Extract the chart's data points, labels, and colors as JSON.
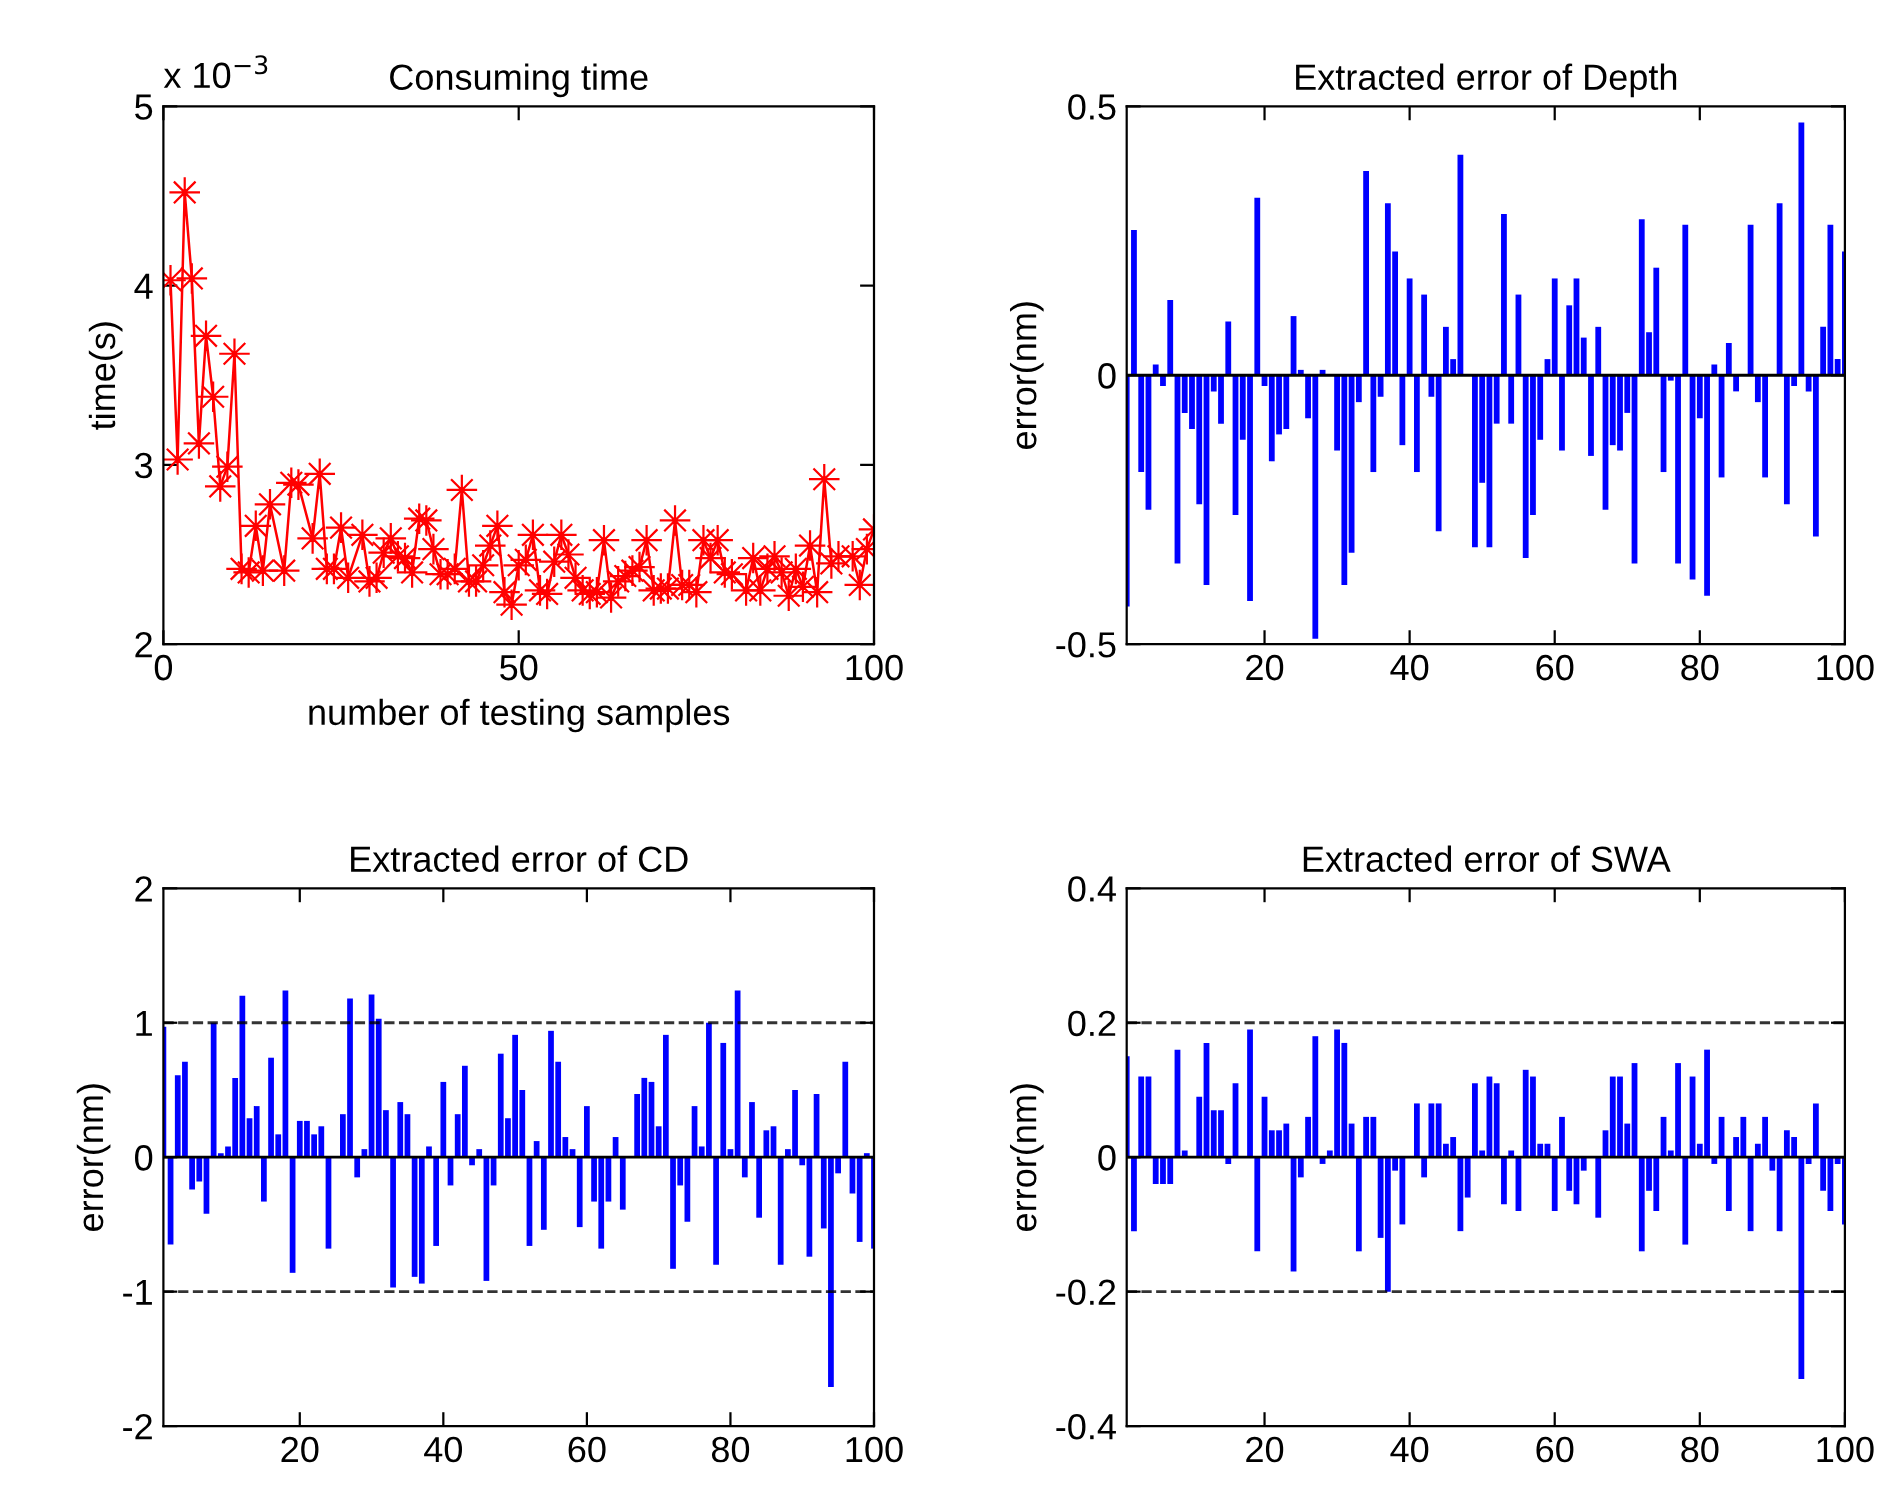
{
  "chart_data": [
    {
      "type": "line",
      "title": "Consuming time",
      "xlabel": "number of testing samples",
      "ylabel": "time(s)",
      "annotations": [
        "x 10$^{−3}$"
      ],
      "marker": "star",
      "line_style": "solid",
      "grid": false,
      "legend": false,
      "xlim": [
        0,
        100
      ],
      "xticks": [
        0,
        50,
        100
      ],
      "ylim": [
        2,
        5
      ],
      "yticks": [
        2,
        3,
        4,
        5
      ],
      "series": [
        {
          "color": "#ff0000",
          "x": [
            1,
            2,
            3,
            4,
            5,
            6,
            7,
            8,
            9,
            10,
            11,
            12,
            13,
            14,
            15,
            17,
            18,
            19,
            21,
            22,
            23,
            24,
            25,
            26,
            28,
            29,
            30,
            31,
            32,
            33,
            34,
            35,
            36,
            37,
            38,
            39,
            40,
            41,
            42,
            43,
            44,
            45,
            46,
            47,
            48,
            49,
            50,
            51,
            52,
            53,
            54,
            55,
            56,
            57,
            58,
            59,
            60,
            61,
            62,
            63,
            64,
            65,
            66,
            67,
            68,
            69,
            70,
            71,
            72,
            73,
            74,
            75,
            76,
            77,
            78,
            79,
            80,
            82,
            83,
            84,
            85,
            86,
            87,
            88,
            89,
            90,
            91,
            92,
            93,
            94,
            95,
            97,
            98,
            99,
            100
          ],
          "values": [
            4.03,
            3.03,
            4.52,
            4.04,
            3.12,
            3.72,
            3.38,
            2.88,
            2.99,
            3.62,
            2.42,
            2.4,
            2.66,
            2.41,
            2.78,
            2.41,
            2.9,
            2.89,
            2.59,
            2.95,
            2.42,
            2.42,
            2.65,
            2.37,
            2.61,
            2.35,
            2.37,
            2.51,
            2.59,
            2.49,
            2.48,
            2.4,
            2.7,
            2.69,
            2.53,
            2.39,
            2.39,
            2.42,
            2.86,
            2.35,
            2.35,
            2.44,
            2.55,
            2.66,
            2.29,
            2.22,
            2.44,
            2.47,
            2.61,
            2.3,
            2.28,
            2.46,
            2.61,
            2.5,
            2.37,
            2.3,
            2.28,
            2.29,
            2.58,
            2.26,
            2.35,
            2.38,
            2.41,
            2.43,
            2.58,
            2.3,
            2.31,
            2.31,
            2.69,
            2.33,
            2.33,
            2.29,
            2.58,
            2.48,
            2.58,
            2.4,
            2.39,
            2.3,
            2.48,
            2.3,
            2.42,
            2.49,
            2.4,
            2.27,
            2.42,
            2.32,
            2.55,
            2.29,
            2.92,
            2.45,
            2.49,
            2.49,
            2.33,
            2.53,
            2.64
          ]
        }
      ]
    },
    {
      "type": "bar",
      "title": "Extracted error of Depth",
      "ylabel": "error(nm)",
      "grid": false,
      "legend": false,
      "xlim": [
        1,
        100
      ],
      "xticks": [
        20,
        40,
        60,
        80,
        100
      ],
      "ylim": [
        -0.5,
        0.5
      ],
      "yticks": [
        -0.5,
        0,
        0.5
      ],
      "ref_lines": [
        {
          "axis": "y",
          "value": 0,
          "color": "#000000",
          "line_style": "solid"
        }
      ],
      "series": [
        {
          "color": "#0000ff",
          "x": [
            1,
            2,
            3,
            4,
            5,
            6,
            7,
            8,
            9,
            10,
            11,
            12,
            13,
            14,
            15,
            16,
            17,
            18,
            19,
            20,
            21,
            22,
            23,
            24,
            25,
            26,
            27,
            28,
            29,
            30,
            31,
            32,
            33,
            34,
            35,
            36,
            37,
            38,
            39,
            40,
            41,
            42,
            43,
            44,
            45,
            46,
            47,
            48,
            49,
            50,
            51,
            52,
            53,
            54,
            55,
            56,
            57,
            58,
            59,
            60,
            61,
            62,
            63,
            64,
            65,
            66,
            67,
            68,
            69,
            70,
            71,
            72,
            73,
            74,
            75,
            76,
            77,
            78,
            79,
            80,
            81,
            82,
            83,
            84,
            85,
            86,
            87,
            88,
            89,
            90,
            91,
            92,
            93,
            94,
            95,
            96,
            97,
            98,
            99,
            100
          ],
          "values": [
            -0.43,
            0.27,
            -0.18,
            -0.25,
            0.02,
            -0.02,
            0.14,
            -0.35,
            -0.07,
            -0.1,
            -0.24,
            -0.39,
            -0.03,
            -0.09,
            0.1,
            -0.26,
            -0.12,
            -0.42,
            0.33,
            -0.02,
            -0.16,
            -0.11,
            -0.1,
            0.11,
            0.01,
            -0.08,
            -0.49,
            0.01,
            0.0,
            -0.14,
            -0.39,
            -0.33,
            -0.05,
            0.38,
            -0.18,
            -0.04,
            0.32,
            0.23,
            -0.13,
            0.18,
            -0.18,
            0.15,
            -0.04,
            -0.29,
            0.09,
            0.03,
            0.41,
            0.0,
            -0.32,
            -0.2,
            -0.32,
            -0.09,
            0.3,
            -0.09,
            0.15,
            -0.34,
            -0.26,
            -0.12,
            0.03,
            0.18,
            -0.14,
            0.13,
            0.18,
            0.07,
            -0.15,
            0.09,
            -0.25,
            -0.13,
            -0.14,
            -0.07,
            -0.35,
            0.29,
            0.08,
            0.2,
            -0.18,
            -0.01,
            -0.35,
            0.28,
            -0.38,
            -0.08,
            -0.41,
            0.02,
            -0.19,
            0.06,
            -0.03,
            0.0,
            0.28,
            -0.05,
            -0.19,
            0.0,
            0.32,
            -0.24,
            -0.02,
            0.47,
            -0.03,
            -0.3,
            0.09,
            0.28,
            0.03,
            0.23
          ]
        }
      ]
    },
    {
      "type": "bar",
      "title": "Extracted error of CD",
      "ylabel": "error(nm)",
      "grid": false,
      "legend": false,
      "xlim": [
        1,
        100
      ],
      "xticks": [
        20,
        40,
        60,
        80,
        100
      ],
      "ylim": [
        -2,
        2
      ],
      "yticks": [
        -2,
        -1,
        0,
        1,
        2
      ],
      "ref_lines": [
        {
          "axis": "y",
          "value": 0,
          "color": "#000000",
          "line_style": "solid"
        },
        {
          "axis": "y",
          "value": 1,
          "color": "#000000",
          "line_style": "dashed"
        },
        {
          "axis": "y",
          "value": -1,
          "color": "#000000",
          "line_style": "dashed"
        }
      ],
      "series": [
        {
          "color": "#0000ff",
          "x": [
            1,
            2,
            3,
            4,
            5,
            6,
            7,
            8,
            9,
            10,
            11,
            12,
            13,
            14,
            15,
            16,
            17,
            18,
            19,
            20,
            21,
            22,
            23,
            24,
            25,
            26,
            27,
            28,
            29,
            30,
            31,
            32,
            33,
            34,
            35,
            36,
            37,
            38,
            39,
            40,
            41,
            42,
            43,
            44,
            45,
            46,
            47,
            48,
            49,
            50,
            51,
            52,
            53,
            54,
            55,
            56,
            57,
            58,
            59,
            60,
            61,
            62,
            63,
            64,
            65,
            66,
            67,
            68,
            69,
            70,
            71,
            72,
            73,
            74,
            75,
            76,
            77,
            78,
            79,
            80,
            81,
            82,
            83,
            84,
            85,
            86,
            87,
            88,
            89,
            90,
            91,
            92,
            93,
            94,
            95,
            96,
            97,
            98,
            99,
            100
          ],
          "values": [
            0.97,
            -0.65,
            0.61,
            0.71,
            -0.24,
            -0.18,
            -0.42,
            1.0,
            0.03,
            0.08,
            0.59,
            1.2,
            0.29,
            0.38,
            -0.33,
            0.74,
            0.17,
            1.24,
            -0.86,
            0.27,
            0.27,
            0.17,
            0.23,
            -0.68,
            0.0,
            0.32,
            1.18,
            -0.15,
            0.06,
            1.21,
            1.03,
            0.35,
            -0.97,
            0.41,
            0.32,
            -0.89,
            -0.94,
            0.08,
            -0.66,
            0.56,
            -0.21,
            0.32,
            0.68,
            -0.06,
            0.06,
            -0.92,
            -0.21,
            0.77,
            0.29,
            0.91,
            0.5,
            -0.66,
            0.12,
            -0.54,
            0.94,
            0.71,
            0.15,
            0.06,
            -0.52,
            0.38,
            -0.33,
            -0.68,
            -0.33,
            0.15,
            -0.39,
            0.0,
            0.47,
            0.59,
            0.56,
            0.23,
            0.91,
            -0.83,
            -0.21,
            -0.48,
            0.38,
            0.08,
            1.0,
            -0.8,
            0.85,
            0.06,
            1.24,
            -0.15,
            0.41,
            -0.45,
            0.2,
            0.23,
            -0.8,
            0.06,
            0.5,
            -0.06,
            -0.74,
            0.47,
            -0.53,
            -1.71,
            -0.12,
            0.71,
            -0.27,
            -0.63,
            0.03,
            -0.68
          ]
        }
      ]
    },
    {
      "type": "bar",
      "title": "Extracted error of SWA",
      "ylabel": "error(nm)",
      "grid": false,
      "legend": false,
      "xlim": [
        1,
        100
      ],
      "xticks": [
        20,
        40,
        60,
        80,
        100
      ],
      "ylim": [
        -0.4,
        0.4
      ],
      "yticks": [
        -0.4,
        -0.2,
        0,
        0.2,
        0.4
      ],
      "ref_lines": [
        {
          "axis": "y",
          "value": 0,
          "color": "#000000",
          "line_style": "solid"
        },
        {
          "axis": "y",
          "value": 0.2,
          "color": "#000000",
          "line_style": "dashed"
        },
        {
          "axis": "y",
          "value": -0.2,
          "color": "#000000",
          "line_style": "dashed"
        }
      ],
      "series": [
        {
          "color": "#0000ff",
          "x": [
            1,
            2,
            3,
            4,
            5,
            6,
            7,
            8,
            9,
            10,
            11,
            12,
            13,
            14,
            15,
            16,
            17,
            18,
            19,
            20,
            21,
            22,
            23,
            24,
            25,
            26,
            27,
            28,
            29,
            30,
            31,
            32,
            33,
            34,
            35,
            36,
            37,
            38,
            39,
            40,
            41,
            42,
            43,
            44,
            45,
            46,
            47,
            48,
            49,
            50,
            51,
            52,
            53,
            54,
            55,
            56,
            57,
            58,
            59,
            60,
            61,
            62,
            63,
            64,
            65,
            66,
            67,
            68,
            69,
            70,
            71,
            72,
            73,
            74,
            75,
            76,
            77,
            78,
            79,
            80,
            81,
            82,
            83,
            84,
            85,
            86,
            87,
            88,
            89,
            90,
            91,
            92,
            93,
            94,
            95,
            96,
            97,
            98,
            99,
            100
          ],
          "values": [
            0.15,
            -0.11,
            0.12,
            0.12,
            -0.04,
            -0.04,
            -0.04,
            0.16,
            0.01,
            0.0,
            0.09,
            0.17,
            0.07,
            0.07,
            -0.01,
            0.11,
            0.0,
            0.19,
            -0.14,
            0.09,
            0.04,
            0.04,
            0.05,
            -0.17,
            -0.03,
            0.06,
            0.18,
            -0.01,
            0.01,
            0.19,
            0.17,
            0.05,
            -0.14,
            0.06,
            0.06,
            -0.12,
            -0.2,
            -0.02,
            -0.1,
            0.0,
            0.08,
            -0.03,
            0.08,
            0.08,
            0.02,
            0.03,
            -0.11,
            -0.06,
            0.11,
            0.01,
            0.12,
            0.11,
            -0.07,
            0.01,
            -0.08,
            0.13,
            0.12,
            0.02,
            0.02,
            -0.08,
            0.06,
            -0.05,
            -0.07,
            -0.02,
            0.0,
            -0.09,
            0.04,
            0.12,
            0.12,
            0.05,
            0.14,
            -0.14,
            -0.05,
            -0.08,
            0.06,
            0.01,
            0.14,
            -0.13,
            0.12,
            0.02,
            0.16,
            -0.01,
            0.06,
            -0.08,
            0.03,
            0.06,
            -0.11,
            0.02,
            0.06,
            -0.02,
            -0.11,
            0.04,
            0.03,
            -0.33,
            -0.01,
            0.08,
            -0.05,
            -0.08,
            -0.01,
            -0.1
          ]
        }
      ]
    }
  ]
}
